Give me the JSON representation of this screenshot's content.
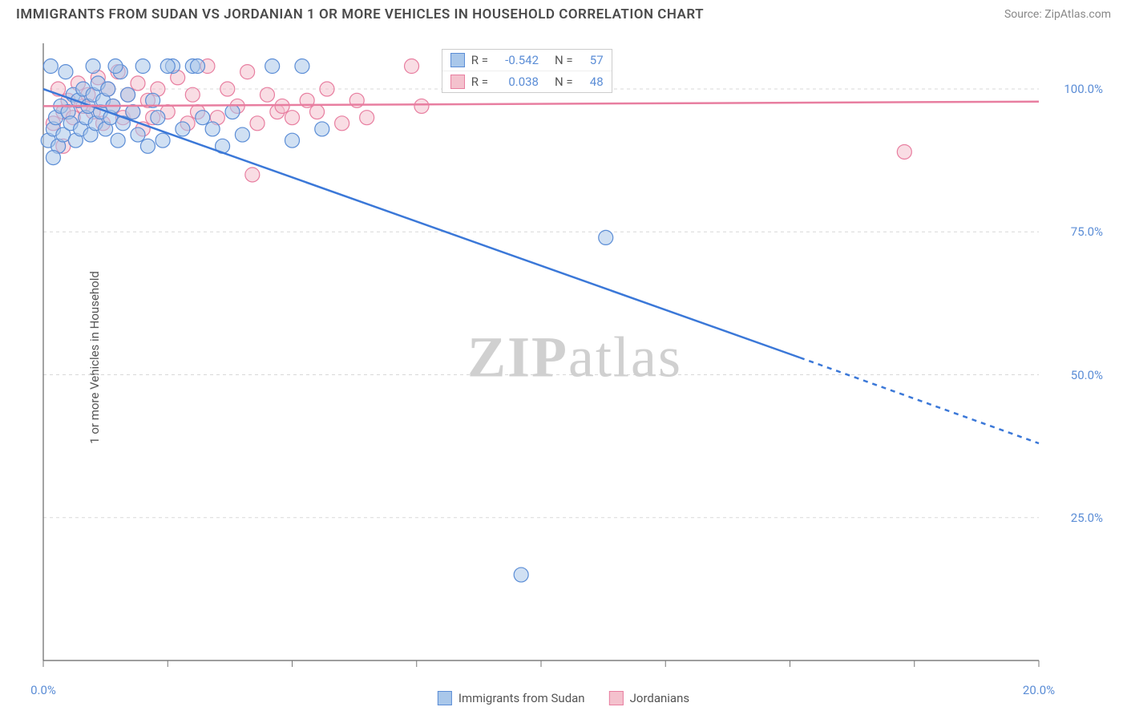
{
  "title": "IMMIGRANTS FROM SUDAN VS JORDANIAN 1 OR MORE VEHICLES IN HOUSEHOLD CORRELATION CHART",
  "source": "Source: ZipAtlas.com",
  "watermark_bold": "ZIP",
  "watermark_light": "atlas",
  "y_axis_label": "1 or more Vehicles in Household",
  "chart": {
    "type": "scatter",
    "background_color": "#ffffff",
    "grid_color": "#d8d8d8",
    "axis_color": "#666666",
    "tick_color": "#777777",
    "xlim": [
      0,
      20
    ],
    "ylim": [
      0,
      108
    ],
    "xticks": [
      0,
      2.5,
      5,
      7.5,
      10,
      12.5,
      15,
      17.5,
      20
    ],
    "xtick_labels": {
      "0": "0.0%",
      "20": "20.0%"
    },
    "yticks": [
      25,
      50,
      75,
      100
    ],
    "ytick_labels": {
      "25": "25.0%",
      "50": "50.0%",
      "75": "75.0%",
      "100": "100.0%"
    },
    "marker_radius": 9,
    "marker_stroke_width": 1.2,
    "line_width": 2.5,
    "series": [
      {
        "name": "Immigrants from Sudan",
        "fill_color": "#a9c7ea",
        "stroke_color": "#5b8dd6",
        "line_color": "#3b78d8",
        "points": [
          [
            0.1,
            91
          ],
          [
            0.2,
            93
          ],
          [
            0.25,
            95
          ],
          [
            0.3,
            90
          ],
          [
            0.35,
            97
          ],
          [
            0.4,
            92
          ],
          [
            0.45,
            103
          ],
          [
            0.5,
            96
          ],
          [
            0.55,
            94
          ],
          [
            0.6,
            99
          ],
          [
            0.65,
            91
          ],
          [
            0.7,
            98
          ],
          [
            0.75,
            93
          ],
          [
            0.8,
            100
          ],
          [
            0.85,
            95
          ],
          [
            0.9,
            97
          ],
          [
            0.95,
            92
          ],
          [
            1.0,
            99
          ],
          [
            1.05,
            94
          ],
          [
            1.1,
            101
          ],
          [
            1.15,
            96
          ],
          [
            1.2,
            98
          ],
          [
            1.25,
            93
          ],
          [
            1.3,
            100
          ],
          [
            1.35,
            95
          ],
          [
            1.4,
            97
          ],
          [
            1.5,
            91
          ],
          [
            1.55,
            103
          ],
          [
            1.6,
            94
          ],
          [
            1.7,
            99
          ],
          [
            1.8,
            96
          ],
          [
            1.9,
            92
          ],
          [
            2.0,
            104
          ],
          [
            2.1,
            90
          ],
          [
            2.2,
            98
          ],
          [
            2.3,
            95
          ],
          [
            2.4,
            91
          ],
          [
            2.6,
            104
          ],
          [
            2.8,
            93
          ],
          [
            3.0,
            104
          ],
          [
            3.2,
            95
          ],
          [
            3.4,
            93
          ],
          [
            3.6,
            90
          ],
          [
            3.8,
            96
          ],
          [
            4.0,
            92
          ],
          [
            4.6,
            104
          ],
          [
            5.0,
            91
          ],
          [
            5.2,
            104
          ],
          [
            5.6,
            93
          ],
          [
            0.15,
            104
          ],
          [
            1.0,
            104
          ],
          [
            1.45,
            104
          ],
          [
            2.5,
            104
          ],
          [
            3.1,
            104
          ],
          [
            11.3,
            74
          ],
          [
            9.6,
            15
          ],
          [
            0.2,
            88
          ]
        ],
        "regression": {
          "x1": 0,
          "y1": 100,
          "x2": 15.2,
          "y2": 53,
          "x2_dash": 20,
          "y2_dash": 38
        }
      },
      {
        "name": "Jordanians",
        "fill_color": "#f4c1cd",
        "stroke_color": "#e87ea0",
        "line_color": "#e87ea0",
        "points": [
          [
            0.2,
            94
          ],
          [
            0.3,
            100
          ],
          [
            0.4,
            96
          ],
          [
            0.5,
            98
          ],
          [
            0.6,
            95
          ],
          [
            0.7,
            101
          ],
          [
            0.8,
            97
          ],
          [
            0.9,
            99
          ],
          [
            1.0,
            96
          ],
          [
            1.1,
            102
          ],
          [
            1.2,
            94
          ],
          [
            1.3,
            100
          ],
          [
            1.4,
            97
          ],
          [
            1.5,
            103
          ],
          [
            1.6,
            95
          ],
          [
            1.7,
            99
          ],
          [
            1.8,
            96
          ],
          [
            1.9,
            101
          ],
          [
            2.0,
            93
          ],
          [
            2.1,
            98
          ],
          [
            2.2,
            95
          ],
          [
            2.3,
            100
          ],
          [
            2.5,
            96
          ],
          [
            2.7,
            102
          ],
          [
            2.9,
            94
          ],
          [
            3.0,
            99
          ],
          [
            3.1,
            96
          ],
          [
            3.3,
            104
          ],
          [
            3.5,
            95
          ],
          [
            3.7,
            100
          ],
          [
            3.9,
            97
          ],
          [
            4.1,
            103
          ],
          [
            4.3,
            94
          ],
          [
            4.5,
            99
          ],
          [
            4.7,
            96
          ],
          [
            4.8,
            97
          ],
          [
            5.0,
            95
          ],
          [
            5.3,
            98
          ],
          [
            5.5,
            96
          ],
          [
            5.7,
            100
          ],
          [
            6.0,
            94
          ],
          [
            6.3,
            98
          ],
          [
            6.5,
            95
          ],
          [
            7.4,
            104
          ],
          [
            7.6,
            97
          ],
          [
            4.2,
            85
          ],
          [
            0.4,
            90
          ],
          [
            17.3,
            89
          ]
        ],
        "regression": {
          "x1": 0,
          "y1": 97,
          "x2": 20,
          "y2": 97.8
        }
      }
    ]
  },
  "stats_box": {
    "rows": [
      {
        "swatch_fill": "#a9c7ea",
        "swatch_stroke": "#5b8dd6",
        "r_label": "R =",
        "r": "-0.542",
        "n_label": "N =",
        "n": "57"
      },
      {
        "swatch_fill": "#f4c1cd",
        "swatch_stroke": "#e87ea0",
        "r_label": "R =",
        "r": "0.038",
        "n_label": "N =",
        "n": "48"
      }
    ]
  },
  "bottom_legend": [
    {
      "fill": "#a9c7ea",
      "stroke": "#5b8dd6",
      "label": "Immigrants from Sudan"
    },
    {
      "fill": "#f4c1cd",
      "stroke": "#e87ea0",
      "label": "Jordanians"
    }
  ]
}
